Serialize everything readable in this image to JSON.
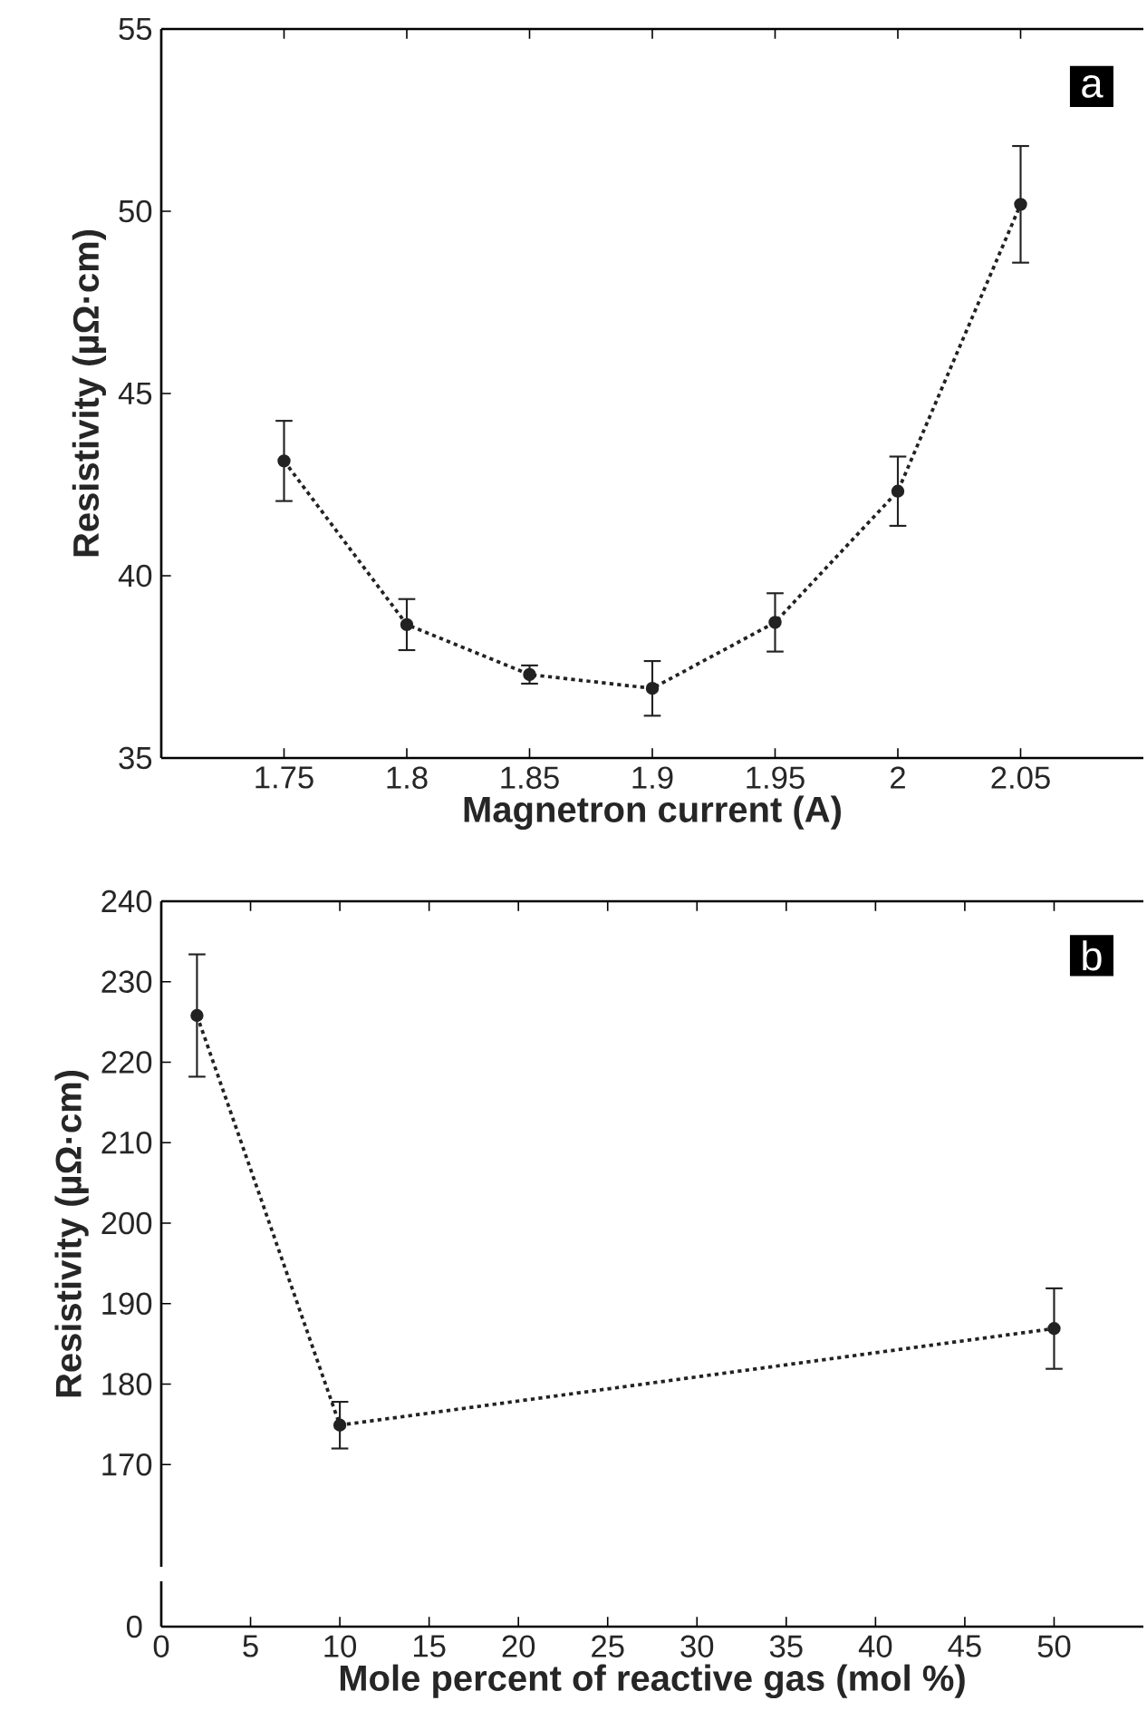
{
  "chart_data": [
    {
      "type": "line",
      "xlabel": "Magnetron current (A)",
      "ylabel": "Resistivity (µΩ·cm)",
      "xlim": [
        1.7,
        2.1
      ],
      "xticks": [
        1.75,
        1.8,
        1.85,
        1.9,
        1.95,
        2,
        2.05
      ],
      "ylim": [
        35,
        55
      ],
      "yticks": [
        35,
        40,
        45,
        50,
        55
      ],
      "marker": "circle",
      "line_style": "dotted",
      "annotations": [
        "a"
      ],
      "series": [
        {
          "color": "#222222",
          "x": [
            1.75,
            1.8,
            1.85,
            1.9,
            1.95,
            2,
            2.05
          ],
          "values": [
            43.15,
            38.66,
            37.29,
            36.91,
            38.72,
            42.32,
            50.19
          ],
          "errors": [
            1.1,
            0.7,
            0.25,
            0.75,
            0.8,
            0.95,
            1.6
          ]
        }
      ]
    },
    {
      "type": "line",
      "xlabel": "Mole percent of reactive gas (mol %)",
      "ylabel": "Resistivity (µΩ·cm)",
      "xlim": [
        0,
        55
      ],
      "xticks": [
        0,
        5,
        10,
        15,
        20,
        25,
        30,
        35,
        40,
        45,
        50
      ],
      "ylim": [
        157.3,
        240
      ],
      "yticks": [
        170,
        180,
        190,
        200,
        210,
        220,
        230,
        240
      ],
      "marker": "circle",
      "line_style": "dotted",
      "annotations": [
        "b",
        "0"
      ],
      "series": [
        {
          "color": "#222222",
          "x": [
            2,
            10,
            50
          ],
          "values": [
            225.8,
            174.9,
            186.9
          ],
          "errors": [
            7.6,
            2.9,
            5
          ]
        }
      ]
    }
  ]
}
